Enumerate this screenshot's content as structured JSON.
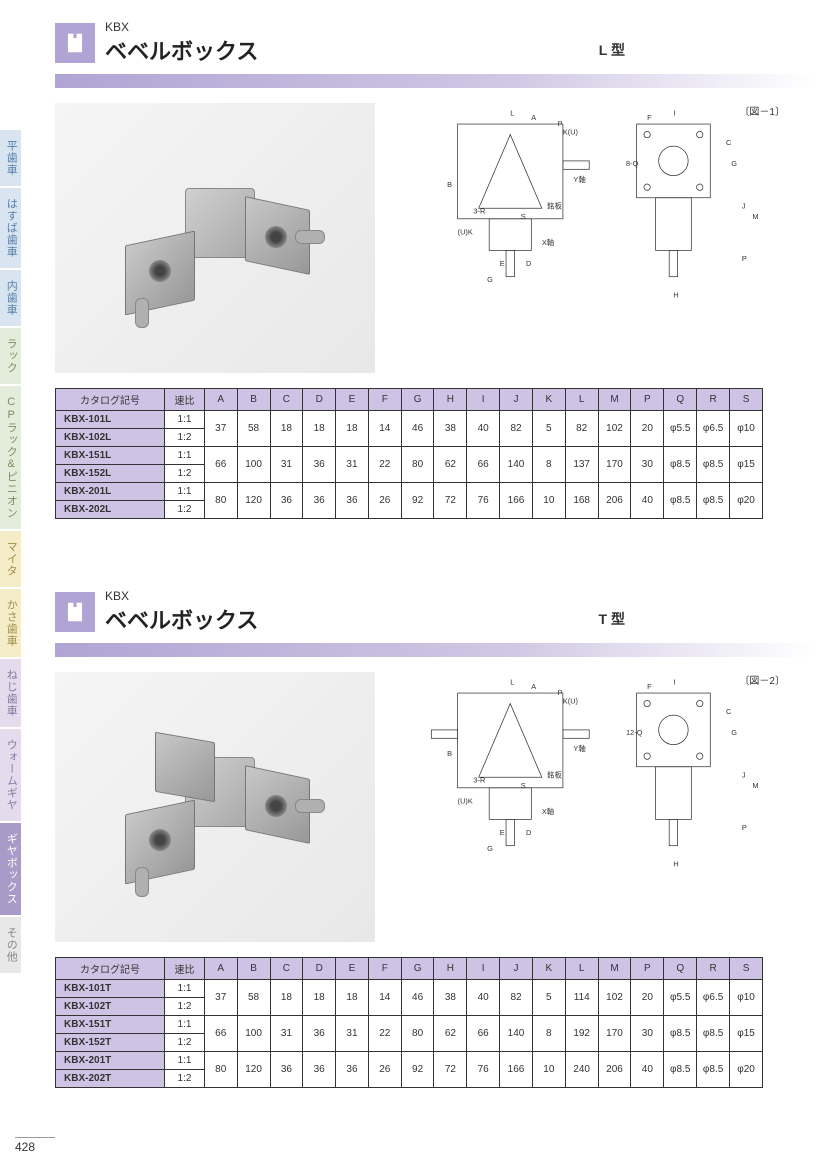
{
  "page_number": "428",
  "sidebar": {
    "tabs": [
      {
        "label": "平歯車",
        "cls": "tab-blue"
      },
      {
        "label": "はすば歯車",
        "cls": "tab-blue"
      },
      {
        "label": "内歯車",
        "cls": "tab-blue"
      },
      {
        "label": "ラック",
        "cls": "tab-green"
      },
      {
        "label": "CPラック&ピニオン",
        "cls": "tab-green"
      },
      {
        "label": "マイタ",
        "cls": "tab-yellow"
      },
      {
        "label": "かさ歯車",
        "cls": "tab-yellow"
      },
      {
        "label": "ねじ歯車",
        "cls": "tab-purple"
      },
      {
        "label": "ウォームギヤ",
        "cls": "tab-purple"
      },
      {
        "label": "ギヤボックス",
        "cls": "tab-active"
      },
      {
        "label": "その他",
        "cls": "tab-gray"
      }
    ]
  },
  "sections": [
    {
      "code": "KBX",
      "title": "ベベルボックス",
      "type_label": "L 型",
      "diagram_label": "〔図－1〕",
      "table": {
        "headers": [
          "カタログ記号",
          "速比",
          "A",
          "B",
          "C",
          "D",
          "E",
          "F",
          "G",
          "H",
          "I",
          "J",
          "K",
          "L",
          "M",
          "P",
          "Q",
          "R",
          "S"
        ],
        "row_groups": [
          {
            "catalogs": [
              "KBX-101L",
              "KBX-102L"
            ],
            "ratios": [
              "1:1",
              "1:2"
            ],
            "dims": [
              "37",
              "58",
              "18",
              "18",
              "18",
              "14",
              "46",
              "38",
              "40",
              "82",
              "5",
              "82",
              "102",
              "20",
              "φ5.5",
              "φ6.5",
              "φ10"
            ]
          },
          {
            "catalogs": [
              "KBX-151L",
              "KBX-152L"
            ],
            "ratios": [
              "1:1",
              "1:2"
            ],
            "dims": [
              "66",
              "100",
              "31",
              "36",
              "31",
              "22",
              "80",
              "62",
              "66",
              "140",
              "8",
              "137",
              "170",
              "30",
              "φ8.5",
              "φ8.5",
              "φ15"
            ]
          },
          {
            "catalogs": [
              "KBX-201L",
              "KBX-202L"
            ],
            "ratios": [
              "1:1",
              "1:2"
            ],
            "dims": [
              "80",
              "120",
              "36",
              "36",
              "36",
              "26",
              "92",
              "72",
              "76",
              "166",
              "10",
              "168",
              "206",
              "40",
              "φ8.5",
              "φ8.5",
              "φ20"
            ]
          }
        ]
      }
    },
    {
      "code": "KBX",
      "title": "ベベルボックス",
      "type_label": "T 型",
      "diagram_label": "〔図－2〕",
      "table": {
        "headers": [
          "カタログ記号",
          "速比",
          "A",
          "B",
          "C",
          "D",
          "E",
          "F",
          "G",
          "H",
          "I",
          "J",
          "K",
          "L",
          "M",
          "P",
          "Q",
          "R",
          "S"
        ],
        "row_groups": [
          {
            "catalogs": [
              "KBX-101T",
              "KBX-102T"
            ],
            "ratios": [
              "1:1",
              "1:2"
            ],
            "dims": [
              "37",
              "58",
              "18",
              "18",
              "18",
              "14",
              "46",
              "38",
              "40",
              "82",
              "5",
              "114",
              "102",
              "20",
              "φ5.5",
              "φ6.5",
              "φ10"
            ]
          },
          {
            "catalogs": [
              "KBX-151T",
              "KBX-152T"
            ],
            "ratios": [
              "1:1",
              "1:2"
            ],
            "dims": [
              "66",
              "100",
              "31",
              "36",
              "31",
              "22",
              "80",
              "62",
              "66",
              "140",
              "8",
              "192",
              "170",
              "30",
              "φ8.5",
              "φ8.5",
              "φ15"
            ]
          },
          {
            "catalogs": [
              "KBX-201T",
              "KBX-202T"
            ],
            "ratios": [
              "1:1",
              "1:2"
            ],
            "dims": [
              "80",
              "120",
              "36",
              "36",
              "36",
              "26",
              "92",
              "72",
              "76",
              "166",
              "10",
              "240",
              "206",
              "40",
              "φ8.5",
              "φ8.5",
              "φ20"
            ]
          }
        ]
      }
    }
  ],
  "diagram_annotations": {
    "L": [
      "L",
      "A",
      "P",
      "K(U)",
      "C",
      "G",
      "I",
      "H",
      "F",
      "J",
      "M",
      "8-Q",
      "Y軸",
      "X軸",
      "銘板",
      "3-R",
      "B",
      "(U)K",
      "D",
      "E",
      "S"
    ],
    "T": [
      "L",
      "A",
      "P",
      "K(U)",
      "C",
      "G",
      "I",
      "H",
      "F",
      "J",
      "M",
      "12-Q",
      "Y軸",
      "X軸",
      "銘板",
      "3-R",
      "B",
      "(U)K",
      "D",
      "E",
      "S",
      "G"
    ]
  },
  "colors": {
    "header_accent": "#b0a4d4",
    "table_header_bg": "#cfc3e5",
    "table_border": "#333333",
    "sidebar_active_bg": "#a89bc8"
  }
}
